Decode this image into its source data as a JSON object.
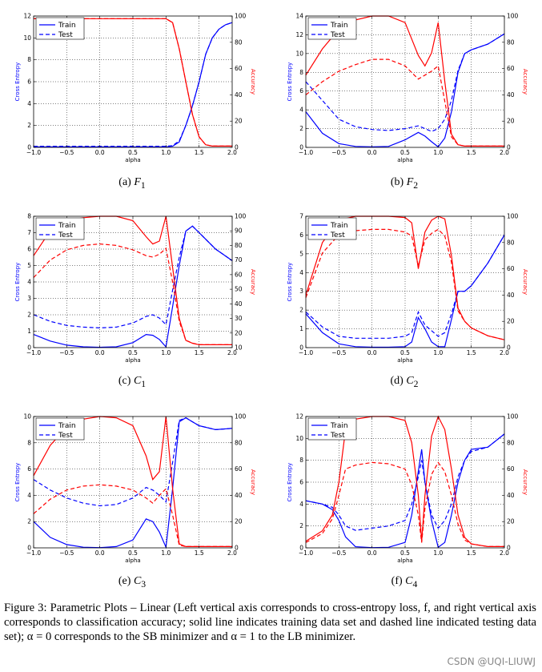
{
  "caption": {
    "text": "Figure 3: Parametric Plots – Linear (Left vertical axis corresponds to cross-entropy loss, f, and right vertical axis corresponds to classification accuracy; solid line indicates training data set and dashed line indicated testing data set); α = 0 corresponds to the SB minimizer and α = 1 to the LB minimizer."
  },
  "watermark": "CSDN @UQI-LIUWJ",
  "colors": {
    "cross_entropy": "#0000ff",
    "accuracy": "#ff0000"
  },
  "chart_data": [
    {
      "id": "F1",
      "caption": "(a)",
      "caption_sym": "F",
      "caption_sub": "1",
      "type": "line",
      "xlabel": "alpha",
      "ylabel": "Cross Entropy",
      "y2label": "Accuracy",
      "xlim": [
        -1,
        2
      ],
      "ylim": [
        0,
        12
      ],
      "y2lim": [
        0,
        100
      ],
      "xticks": [
        -1.0,
        -0.5,
        0.0,
        0.5,
        1.0,
        1.5,
        2.0
      ],
      "xticklabels": [
        "−1.0",
        "−0.5",
        "0.0",
        "0.5",
        "1.0",
        "1.5",
        "2.0"
      ],
      "yticks": [
        0,
        2,
        4,
        6,
        8,
        10,
        12
      ],
      "y2ticks": [
        0,
        20,
        40,
        60,
        80,
        100
      ],
      "legend": [
        {
          "label": "Train",
          "dash": false
        },
        {
          "label": "Test",
          "dash": true
        }
      ],
      "x": [
        -1.0,
        -0.5,
        0.0,
        0.5,
        0.9,
        1.0,
        1.1,
        1.2,
        1.3,
        1.4,
        1.5,
        1.6,
        1.7,
        1.8,
        1.9,
        2.0
      ],
      "series": [
        {
          "name": "Train",
          "axis": "left",
          "dash": false,
          "values": [
            0.05,
            0.05,
            0.05,
            0.05,
            0.05,
            0.05,
            0.1,
            0.5,
            2.0,
            3.8,
            6.0,
            8.5,
            10.0,
            10.8,
            11.2,
            11.4
          ]
        },
        {
          "name": "Test",
          "axis": "left",
          "dash": true,
          "values": [
            0.1,
            0.1,
            0.1,
            0.1,
            0.1,
            0.1,
            0.15,
            0.6,
            2.0,
            3.8,
            6.0,
            8.5,
            10.0,
            10.8,
            11.2,
            11.4
          ]
        },
        {
          "name": "Train",
          "axis": "right",
          "dash": false,
          "values": [
            98,
            98,
            98,
            98,
            98,
            98,
            95,
            75,
            50,
            25,
            8,
            2,
            1,
            1,
            1,
            1
          ]
        },
        {
          "name": "Test",
          "axis": "right",
          "dash": true,
          "values": [
            98,
            98,
            98,
            98,
            98,
            98,
            95,
            75,
            50,
            25,
            8,
            2,
            1,
            1,
            1,
            1
          ]
        }
      ]
    },
    {
      "id": "F2",
      "caption": "(b)",
      "caption_sym": "F",
      "caption_sub": "2",
      "type": "line",
      "xlabel": "alpha",
      "ylabel": "Cross Entropy",
      "y2label": "Accuracy",
      "xlim": [
        -1,
        2
      ],
      "ylim": [
        0,
        14
      ],
      "y2lim": [
        0,
        100
      ],
      "xticks": [
        -1.0,
        -0.5,
        0.0,
        0.5,
        1.0,
        1.5,
        2.0
      ],
      "xticklabels": [
        "−1.0",
        "−0.5",
        "0.0",
        "0.5",
        "1.0",
        "1.5",
        "2.0"
      ],
      "yticks": [
        0,
        2,
        4,
        6,
        8,
        10,
        12,
        14
      ],
      "y2ticks": [
        0,
        20,
        40,
        60,
        80,
        100
      ],
      "legend": [
        {
          "label": "Train",
          "dash": false
        },
        {
          "label": "Test",
          "dash": true
        }
      ],
      "x": [
        -1.0,
        -0.75,
        -0.5,
        -0.25,
        0.0,
        0.25,
        0.5,
        0.7,
        0.8,
        0.9,
        1.0,
        1.1,
        1.2,
        1.3,
        1.4,
        1.5,
        1.75,
        2.0
      ],
      "series": [
        {
          "name": "Train",
          "axis": "left",
          "dash": false,
          "values": [
            3.8,
            1.5,
            0.4,
            0.1,
            0.05,
            0.1,
            0.8,
            1.6,
            1.2,
            0.6,
            0.05,
            1.0,
            3.8,
            8.0,
            10.0,
            10.4,
            11.0,
            12.1
          ]
        },
        {
          "name": "Test",
          "axis": "left",
          "dash": true,
          "values": [
            7.0,
            5.0,
            3.0,
            2.2,
            1.9,
            1.8,
            2.0,
            2.3,
            2.0,
            1.7,
            2.0,
            3.0,
            5.0,
            8.2,
            10.0,
            10.4,
            11.0,
            12.1
          ]
        },
        {
          "name": "Train",
          "axis": "right",
          "dash": false,
          "values": [
            55,
            75,
            90,
            97,
            100,
            100,
            95,
            70,
            62,
            72,
            95,
            50,
            10,
            2,
            1,
            1,
            1,
            1
          ]
        },
        {
          "name": "Test",
          "axis": "right",
          "dash": true,
          "values": [
            40,
            50,
            58,
            63,
            67,
            67,
            62,
            52,
            55,
            58,
            62,
            35,
            8,
            2,
            1,
            1,
            1,
            1
          ]
        }
      ]
    },
    {
      "id": "C1",
      "caption": "(c)",
      "caption_sym": "C",
      "caption_sub": "1",
      "type": "line",
      "xlabel": "alpha",
      "ylabel": "Cross Entropy",
      "y2label": "Accuracy",
      "xlim": [
        -1,
        2
      ],
      "ylim": [
        0,
        8
      ],
      "y2lim": [
        10,
        100
      ],
      "xticks": [
        -1.0,
        -0.5,
        0.0,
        0.5,
        1.0,
        1.5,
        2.0
      ],
      "xticklabels": [
        "−1.0",
        "−0.5",
        "0.0",
        "0.5",
        "1.0",
        "1.5",
        "2.0"
      ],
      "yticks": [
        0,
        1,
        2,
        3,
        4,
        5,
        6,
        7,
        8
      ],
      "y2ticks": [
        10,
        20,
        30,
        40,
        50,
        60,
        70,
        80,
        90,
        100
      ],
      "legend": [
        {
          "label": "Train",
          "dash": false
        },
        {
          "label": "Test",
          "dash": true
        }
      ],
      "x": [
        -1.0,
        -0.75,
        -0.5,
        -0.25,
        0.0,
        0.25,
        0.5,
        0.7,
        0.8,
        0.9,
        1.0,
        1.1,
        1.2,
        1.3,
        1.4,
        1.5,
        1.75,
        2.0
      ],
      "series": [
        {
          "name": "Train",
          "axis": "left",
          "dash": false,
          "values": [
            0.8,
            0.4,
            0.15,
            0.05,
            0.02,
            0.05,
            0.3,
            0.8,
            0.75,
            0.5,
            0.05,
            2.5,
            5.0,
            7.1,
            7.4,
            7.0,
            6.0,
            5.3
          ]
        },
        {
          "name": "Test",
          "axis": "left",
          "dash": true,
          "values": [
            2.0,
            1.6,
            1.35,
            1.25,
            1.2,
            1.25,
            1.5,
            1.9,
            2.0,
            1.8,
            1.4,
            3.5,
            5.5,
            7.1,
            7.4,
            7.0,
            6.0,
            5.3
          ]
        },
        {
          "name": "Train",
          "axis": "right",
          "dash": false,
          "values": [
            73,
            90,
            97,
            99,
            100,
            100,
            97,
            86,
            81,
            83,
            100,
            65,
            30,
            15,
            13,
            12,
            12,
            12
          ]
        },
        {
          "name": "Test",
          "axis": "right",
          "dash": true,
          "values": [
            58,
            70,
            77,
            80,
            81,
            80,
            77,
            73,
            72,
            74,
            78,
            55,
            28,
            15,
            13,
            12,
            12,
            12
          ]
        }
      ]
    },
    {
      "id": "C2",
      "caption": "(d)",
      "caption_sym": "C",
      "caption_sub": "2",
      "type": "line",
      "xlabel": "alpha",
      "ylabel": "Cross Entropy",
      "y2label": "Accuracy",
      "xlim": [
        -1,
        2
      ],
      "ylim": [
        0,
        7
      ],
      "y2lim": [
        0,
        100
      ],
      "xticks": [
        -1.0,
        -0.5,
        0.0,
        0.5,
        1.0,
        1.5,
        2.0
      ],
      "xticklabels": [
        "−1.0",
        "−0.5",
        "0.0",
        "0.5",
        "1.0",
        "1.5",
        "2.0"
      ],
      "yticks": [
        0,
        1,
        2,
        3,
        4,
        5,
        6,
        7
      ],
      "y2ticks": [
        0,
        20,
        40,
        60,
        80,
        100
      ],
      "legend": [
        {
          "label": "Train",
          "dash": false
        },
        {
          "label": "Test",
          "dash": true
        }
      ],
      "x": [
        -1.0,
        -0.75,
        -0.5,
        -0.25,
        0.0,
        0.25,
        0.5,
        0.6,
        0.7,
        0.8,
        0.9,
        1.0,
        1.1,
        1.2,
        1.3,
        1.4,
        1.5,
        1.75,
        2.0
      ],
      "series": [
        {
          "name": "Train",
          "axis": "left",
          "dash": false,
          "values": [
            1.8,
            0.8,
            0.2,
            0.05,
            0.02,
            0.02,
            0.05,
            0.3,
            1.6,
            1.0,
            0.3,
            0.05,
            0.05,
            1.5,
            3.0,
            3.0,
            3.3,
            4.5,
            6.0
          ]
        },
        {
          "name": "Test",
          "axis": "left",
          "dash": true,
          "values": [
            1.9,
            1.1,
            0.6,
            0.5,
            0.5,
            0.5,
            0.6,
            0.8,
            1.9,
            1.2,
            0.9,
            0.6,
            0.8,
            1.8,
            3.0,
            3.0,
            3.3,
            4.5,
            6.0
          ]
        },
        {
          "name": "Train",
          "axis": "right",
          "dash": false,
          "values": [
            40,
            80,
            97,
            100,
            100,
            100,
            99,
            95,
            60,
            88,
            97,
            100,
            98,
            70,
            30,
            20,
            15,
            9,
            6
          ]
        },
        {
          "name": "Test",
          "axis": "right",
          "dash": true,
          "values": [
            38,
            72,
            86,
            89,
            90,
            90,
            88,
            85,
            62,
            82,
            87,
            90,
            85,
            65,
            28,
            20,
            15,
            9,
            6
          ]
        }
      ]
    },
    {
      "id": "C3",
      "caption": "(e)",
      "caption_sym": "C",
      "caption_sub": "3",
      "type": "line",
      "xlabel": "alpha",
      "ylabel": "Cross Entropy",
      "y2label": "Accuracy",
      "xlim": [
        -1,
        2
      ],
      "ylim": [
        0,
        10
      ],
      "y2lim": [
        0,
        100
      ],
      "xticks": [
        -1.0,
        -0.5,
        0.0,
        0.5,
        1.0,
        1.5,
        2.0
      ],
      "xticklabels": [
        "−1.0",
        "−0.5",
        "0.0",
        "0.5",
        "1.0",
        "1.5",
        "2.0"
      ],
      "yticks": [
        0,
        2,
        4,
        6,
        8,
        10
      ],
      "y2ticks": [
        0,
        20,
        40,
        60,
        80,
        100
      ],
      "legend": [
        {
          "label": "Train",
          "dash": false
        },
        {
          "label": "Test",
          "dash": true
        }
      ],
      "x": [
        -1.0,
        -0.75,
        -0.5,
        -0.25,
        0.0,
        0.25,
        0.5,
        0.7,
        0.8,
        0.9,
        1.0,
        1.1,
        1.2,
        1.3,
        1.4,
        1.5,
        1.75,
        2.0
      ],
      "series": [
        {
          "name": "Train",
          "axis": "left",
          "dash": false,
          "values": [
            2.0,
            0.8,
            0.25,
            0.05,
            0.02,
            0.1,
            0.6,
            2.2,
            2.0,
            1.2,
            0.05,
            4.5,
            9.6,
            9.9,
            9.6,
            9.3,
            9.0,
            9.1
          ]
        },
        {
          "name": "Test",
          "axis": "left",
          "dash": true,
          "values": [
            5.2,
            4.4,
            3.8,
            3.4,
            3.2,
            3.3,
            3.8,
            4.6,
            4.4,
            4.0,
            3.5,
            6.5,
            9.7,
            9.9,
            9.6,
            9.3,
            9.0,
            9.1
          ]
        },
        {
          "name": "Train",
          "axis": "right",
          "dash": false,
          "values": [
            55,
            78,
            92,
            98,
            100,
            99,
            93,
            70,
            52,
            58,
            100,
            45,
            3,
            1,
            1,
            1,
            1,
            1
          ]
        },
        {
          "name": "Test",
          "axis": "right",
          "dash": true,
          "values": [
            26,
            37,
            44,
            47,
            48,
            47,
            44,
            38,
            34,
            40,
            45,
            25,
            2,
            1,
            1,
            1,
            1,
            1
          ]
        }
      ]
    },
    {
      "id": "C4",
      "caption": "(f)",
      "caption_sym": "C",
      "caption_sub": "4",
      "type": "line",
      "xlabel": "alpha",
      "ylabel": "Cross Entropy",
      "y2label": "Accuracy",
      "xlim": [
        -1,
        2
      ],
      "ylim": [
        0,
        12
      ],
      "y2lim": [
        0,
        100
      ],
      "xticks": [
        -1.0,
        -0.5,
        0.0,
        0.5,
        1.0,
        1.5,
        2.0
      ],
      "xticklabels": [
        "−1.0",
        "−0.5",
        "0.0",
        "0.5",
        "1.0",
        "1.5",
        "2.0"
      ],
      "yticks": [
        0,
        2,
        4,
        6,
        8,
        10,
        12
      ],
      "y2ticks": [
        0,
        20,
        40,
        60,
        80,
        100
      ],
      "legend": [
        {
          "label": "Train",
          "dash": false
        },
        {
          "label": "Test",
          "dash": true
        }
      ],
      "x": [
        -1.0,
        -0.75,
        -0.6,
        -0.5,
        -0.4,
        -0.25,
        0.0,
        0.25,
        0.5,
        0.6,
        0.7,
        0.75,
        0.8,
        0.9,
        1.0,
        1.1,
        1.2,
        1.3,
        1.4,
        1.5,
        1.75,
        2.0
      ],
      "series": [
        {
          "name": "Train",
          "axis": "left",
          "dash": false,
          "values": [
            4.3,
            4.0,
            3.5,
            2.5,
            1.0,
            0.1,
            0.02,
            0.05,
            0.5,
            3.0,
            7.0,
            9.0,
            6.0,
            2.5,
            0.05,
            0.5,
            3.0,
            6.0,
            8.0,
            9.0,
            9.2,
            10.4
          ]
        },
        {
          "name": "Test",
          "axis": "left",
          "dash": true,
          "values": [
            4.3,
            4.0,
            3.7,
            3.0,
            2.0,
            1.6,
            1.8,
            2.0,
            2.5,
            4.0,
            6.5,
            8.0,
            6.0,
            3.0,
            1.8,
            2.5,
            4.0,
            6.5,
            8.0,
            8.8,
            9.2,
            10.4
          ]
        },
        {
          "name": "Train",
          "axis": "right",
          "dash": false,
          "values": [
            5,
            13,
            25,
            50,
            90,
            98,
            100,
            100,
            97,
            80,
            40,
            5,
            40,
            85,
            100,
            90,
            60,
            25,
            8,
            3,
            1,
            1
          ]
        },
        {
          "name": "Test",
          "axis": "right",
          "dash": true,
          "values": [
            4,
            11,
            22,
            40,
            60,
            63,
            65,
            64,
            60,
            48,
            25,
            4,
            30,
            56,
            65,
            58,
            40,
            18,
            6,
            3,
            1,
            1
          ]
        }
      ]
    }
  ]
}
